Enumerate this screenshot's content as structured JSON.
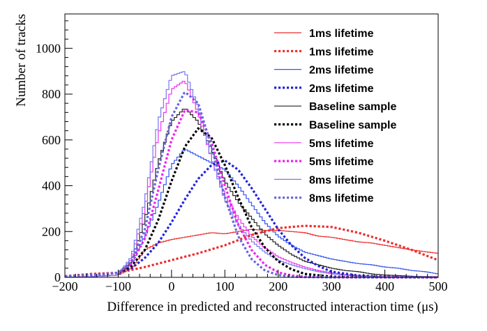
{
  "chart_data": {
    "type": "line",
    "title": "",
    "xlabel": "Difference in predicted and reconstructed interaction time (μs)",
    "ylabel": "Number of tracks",
    "xlim": [
      -200,
      500
    ],
    "ylim": [
      0,
      1150
    ],
    "x_ticks": [
      -200,
      -100,
      0,
      100,
      200,
      300,
      400,
      500
    ],
    "x_tick_labels": [
      "−200",
      "−100",
      "0",
      "100",
      "200",
      "300",
      "400",
      "500"
    ],
    "y_ticks": [
      0,
      200,
      400,
      600,
      800,
      1000
    ],
    "y_tick_labels": [
      "0",
      "200",
      "400",
      "600",
      "800",
      "1000"
    ],
    "grid": false,
    "legend_position": "top-right",
    "bin_width": 5,
    "series": [
      {
        "name": "1ms lifetime",
        "kind": "histogram",
        "color": "#ee2b2b",
        "style": "solid",
        "x": [
          -200,
          -150,
          -100,
          -75,
          -50,
          -25,
          0,
          25,
          50,
          75,
          100,
          125,
          150,
          175,
          200,
          225,
          250,
          275,
          300,
          325,
          350,
          375,
          400,
          425,
          450,
          475,
          500
        ],
        "y": [
          0,
          3,
          10,
          40,
          120,
          150,
          165,
          175,
          185,
          195,
          190,
          200,
          210,
          205,
          205,
          200,
          195,
          180,
          175,
          165,
          155,
          150,
          140,
          130,
          120,
          112,
          105
        ]
      },
      {
        "name": "1ms lifetime",
        "kind": "fit",
        "color": "#ee2b2b",
        "style": "dotted",
        "x": [
          -200,
          -150,
          -100,
          -50,
          0,
          50,
          100,
          150,
          200,
          250,
          300,
          350,
          400,
          450,
          500
        ],
        "y": [
          5,
          15,
          20,
          45,
          75,
          105,
          140,
          185,
          215,
          225,
          220,
          195,
          160,
          120,
          75
        ]
      },
      {
        "name": "2ms lifetime",
        "kind": "histogram",
        "color": "#3355ee",
        "style": "solid",
        "x": [
          -200,
          -150,
          -100,
          -75,
          -50,
          -25,
          0,
          25,
          50,
          75,
          100,
          125,
          150,
          175,
          200,
          225,
          250,
          275,
          300,
          325,
          350,
          375,
          400,
          425,
          450,
          475,
          500
        ],
        "y": [
          0,
          3,
          10,
          60,
          180,
          320,
          490,
          560,
          530,
          500,
          470,
          400,
          320,
          240,
          180,
          140,
          110,
          95,
          80,
          70,
          60,
          55,
          45,
          40,
          30,
          25,
          15
        ]
      },
      {
        "name": "2ms lifetime",
        "kind": "fit",
        "color": "#2222dd",
        "style": "dotted",
        "x": [
          -200,
          -150,
          -100,
          -75,
          -50,
          -25,
          0,
          25,
          50,
          75,
          100,
          125,
          150,
          175,
          200,
          225,
          250,
          275,
          300,
          350,
          400,
          450,
          500
        ],
        "y": [
          5,
          10,
          20,
          40,
          85,
          150,
          240,
          340,
          430,
          490,
          510,
          470,
          390,
          300,
          210,
          140,
          85,
          50,
          25,
          8,
          3,
          1,
          0
        ]
      },
      {
        "name": "Baseline sample",
        "kind": "histogram",
        "color": "#222222",
        "style": "solid",
        "x": [
          -200,
          -150,
          -100,
          -75,
          -50,
          -25,
          0,
          25,
          50,
          75,
          100,
          125,
          150,
          175,
          200,
          225,
          250,
          275,
          300,
          325,
          350,
          375,
          400,
          425,
          450,
          475,
          500
        ],
        "y": [
          0,
          3,
          10,
          70,
          250,
          500,
          680,
          740,
          680,
          560,
          420,
          330,
          260,
          190,
          140,
          100,
          70,
          55,
          40,
          30,
          25,
          15,
          10,
          8,
          5,
          3,
          2
        ]
      },
      {
        "name": "Baseline sample",
        "kind": "fit",
        "color": "#000000",
        "style": "dotted",
        "x": [
          -200,
          -150,
          -100,
          -75,
          -50,
          -25,
          0,
          25,
          50,
          75,
          100,
          125,
          150,
          175,
          200,
          225,
          250,
          300,
          350,
          400,
          450,
          500
        ],
        "y": [
          5,
          10,
          20,
          50,
          120,
          250,
          420,
          570,
          650,
          610,
          490,
          350,
          220,
          130,
          70,
          35,
          15,
          3,
          1,
          0,
          0,
          0
        ]
      },
      {
        "name": "5ms lifetime",
        "kind": "histogram",
        "color": "#ee33ee",
        "style": "solid",
        "x": [
          -200,
          -150,
          -100,
          -75,
          -50,
          -25,
          0,
          25,
          50,
          75,
          100,
          125,
          150,
          175,
          200,
          225,
          250,
          275,
          300,
          325,
          350,
          375,
          400,
          425,
          450,
          475,
          500
        ],
        "y": [
          0,
          3,
          10,
          80,
          300,
          620,
          820,
          860,
          720,
          520,
          360,
          260,
          180,
          130,
          90,
          65,
          45,
          30,
          20,
          12,
          8,
          5,
          3,
          2,
          1,
          1,
          0
        ]
      },
      {
        "name": "5ms lifetime",
        "kind": "fit",
        "color": "#ee22ee",
        "style": "dotted",
        "x": [
          -200,
          -150,
          -100,
          -75,
          -50,
          -25,
          0,
          25,
          50,
          75,
          100,
          125,
          150,
          175,
          200,
          225,
          250,
          300,
          350,
          400,
          450,
          500
        ],
        "y": [
          5,
          10,
          20,
          60,
          170,
          380,
          600,
          730,
          720,
          590,
          400,
          230,
          120,
          55,
          22,
          8,
          3,
          0,
          0,
          0,
          0,
          0
        ]
      },
      {
        "name": "8ms lifetime",
        "kind": "histogram",
        "color": "#7777ee",
        "style": "solid",
        "x": [
          -200,
          -150,
          -100,
          -75,
          -50,
          -25,
          0,
          25,
          50,
          75,
          100,
          125,
          150,
          175,
          200,
          225,
          250,
          275,
          300,
          325,
          350,
          375,
          400,
          425,
          450,
          475,
          500
        ],
        "y": [
          0,
          3,
          10,
          90,
          330,
          680,
          880,
          900,
          740,
          520,
          340,
          230,
          160,
          110,
          75,
          55,
          38,
          25,
          15,
          10,
          6,
          4,
          2,
          1,
          1,
          0,
          0
        ]
      },
      {
        "name": "8ms lifetime",
        "kind": "fit",
        "color": "#6666dd",
        "style": "dotted",
        "x": [
          -200,
          -150,
          -100,
          -75,
          -50,
          -25,
          0,
          25,
          50,
          75,
          100,
          125,
          150,
          175,
          200,
          225,
          250,
          300,
          350,
          400,
          450,
          500
        ],
        "y": [
          5,
          10,
          20,
          70,
          210,
          470,
          700,
          810,
          760,
          570,
          350,
          180,
          80,
          30,
          10,
          3,
          1,
          0,
          0,
          0,
          0,
          0
        ]
      }
    ]
  }
}
